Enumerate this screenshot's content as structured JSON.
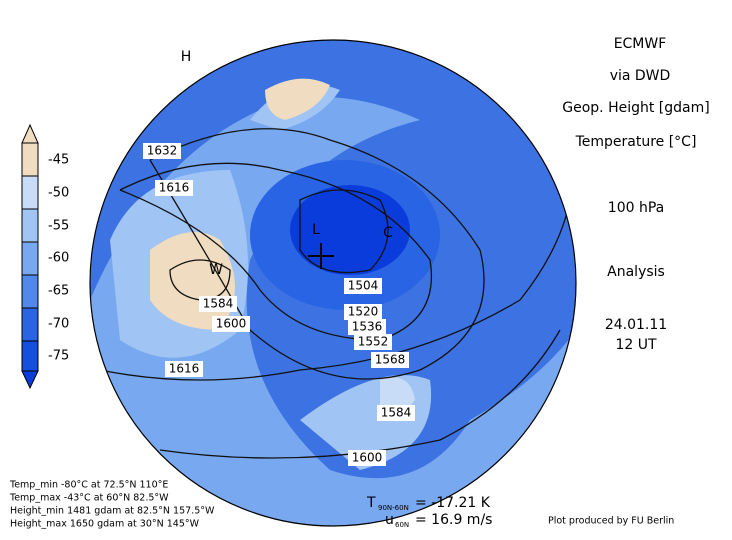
{
  "header": {
    "title": "ECMWF",
    "source": "via DWD",
    "variable_1": "Geop. Height [gdam]",
    "variable_2": "Temperature [°C]",
    "level": "100 hPa",
    "kind": "Analysis",
    "date": "24.01.11",
    "time": "12 UT"
  },
  "colorbar": {
    "labels": [
      "-45",
      "-50",
      "-55",
      "-60",
      "-65",
      "-70",
      "-75"
    ]
  },
  "map": {
    "contour_labels": [
      "1632",
      "1616",
      "1584",
      "1600",
      "1504",
      "1520",
      "1536",
      "1552",
      "1568",
      "1584",
      "1600",
      "1616"
    ],
    "markers": [
      "W",
      "L",
      "C",
      "H"
    ]
  },
  "stats": [
    "Temp_min -80°C at 72.5°N 110°E",
    "Temp_max -43°C at 60°N 82.5°W",
    "Height_min 1481 gdam at 82.5°N 157.5°W",
    "Height_max 1650 gdam at 30°N 145°W"
  ],
  "indices": {
    "t_symbol": "T",
    "t_sub": "90N-60N",
    "t_value": "= -17.21 K",
    "u_symbol": "u",
    "u_sub": "60N",
    "u_value": "= 16.9 m/s"
  },
  "credit": "Plot produced by FU Berlin"
}
